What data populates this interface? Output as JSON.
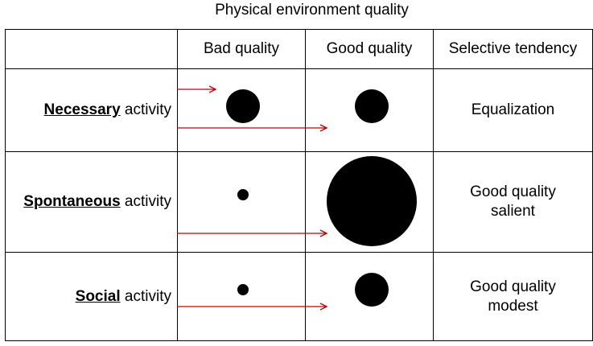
{
  "title": "Physical environment quality",
  "columns": {
    "bad": "Bad quality",
    "good": "Good quality",
    "tendency": "Selective tendency"
  },
  "rows": [
    {
      "key": "Necessary",
      "suffix": " activity",
      "tendency": [
        "Equalization"
      ]
    },
    {
      "key": "Spontaneous",
      "suffix": " activity",
      "tendency": [
        "Good quality",
        "salient"
      ]
    },
    {
      "key": "Social",
      "suffix": " activity",
      "tendency": [
        "Good quality",
        "modest"
      ]
    }
  ],
  "colors": {
    "arrow": "#c00000",
    "dot": "#000000",
    "border": "#000000"
  }
}
